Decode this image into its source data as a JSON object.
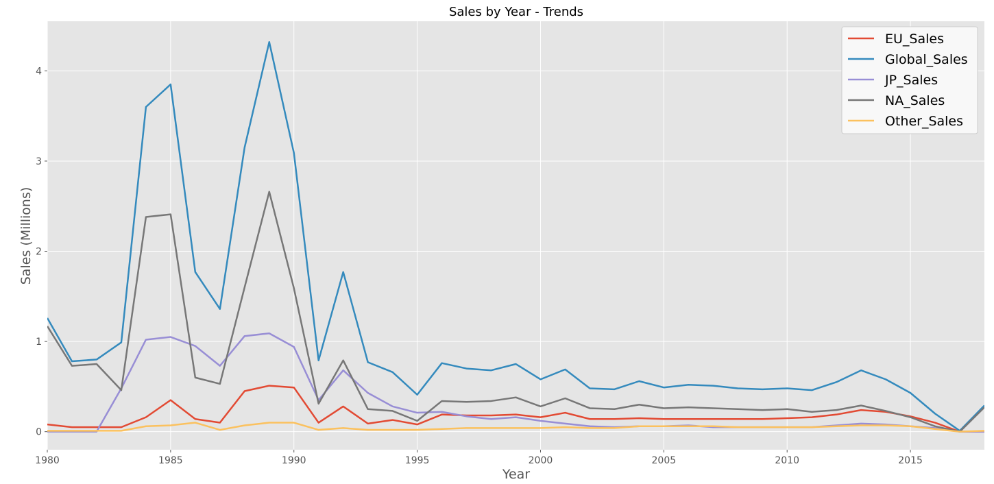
{
  "chart_data": {
    "type": "line",
    "title": "Sales by Year - Trends",
    "xlabel": "Year",
    "ylabel": "Sales (Millions)",
    "xlim": [
      1980,
      2018
    ],
    "ylim": [
      -0.2,
      4.55
    ],
    "xticks": [
      1980,
      1985,
      1990,
      1995,
      2000,
      2005,
      2010,
      2015
    ],
    "yticks": [
      0,
      1,
      2,
      3,
      4
    ],
    "grid": true,
    "legend_position": "top-right",
    "background": "#e5e5e5",
    "x": [
      1980,
      1981,
      1982,
      1983,
      1984,
      1985,
      1986,
      1987,
      1988,
      1989,
      1990,
      1991,
      1992,
      1993,
      1994,
      1995,
      1996,
      1997,
      1998,
      1999,
      2000,
      2001,
      2002,
      2003,
      2004,
      2005,
      2006,
      2007,
      2008,
      2009,
      2010,
      2011,
      2012,
      2013,
      2014,
      2015,
      2016,
      2017,
      2018
    ],
    "series": [
      {
        "name": "EU_Sales",
        "color": "#e24a33",
        "values": [
          0.08,
          0.05,
          0.05,
          0.05,
          0.16,
          0.35,
          0.14,
          0.1,
          0.45,
          0.51,
          0.49,
          0.1,
          0.28,
          0.09,
          0.13,
          0.08,
          0.19,
          0.18,
          0.18,
          0.19,
          0.16,
          0.21,
          0.14,
          0.14,
          0.15,
          0.14,
          0.14,
          0.14,
          0.14,
          0.14,
          0.15,
          0.16,
          0.19,
          0.24,
          0.22,
          0.17,
          0.1,
          0.0,
          0.0
        ]
      },
      {
        "name": "Global_Sales",
        "color": "#348abd",
        "values": [
          1.26,
          0.78,
          0.8,
          0.99,
          3.6,
          3.85,
          1.77,
          1.36,
          3.15,
          4.32,
          3.09,
          0.79,
          1.77,
          0.77,
          0.66,
          0.41,
          0.76,
          0.7,
          0.68,
          0.75,
          0.58,
          0.69,
          0.48,
          0.47,
          0.56,
          0.49,
          0.52,
          0.51,
          0.48,
          0.47,
          0.48,
          0.46,
          0.55,
          0.68,
          0.58,
          0.43,
          0.2,
          0.01,
          0.29
        ]
      },
      {
        "name": "JP_Sales",
        "color": "#988ed5",
        "values": [
          0.0,
          0.0,
          0.0,
          0.48,
          1.02,
          1.05,
          0.95,
          0.73,
          1.06,
          1.09,
          0.94,
          0.35,
          0.68,
          0.43,
          0.28,
          0.21,
          0.22,
          0.17,
          0.14,
          0.16,
          0.12,
          0.09,
          0.06,
          0.05,
          0.06,
          0.06,
          0.07,
          0.05,
          0.05,
          0.05,
          0.05,
          0.05,
          0.07,
          0.09,
          0.08,
          0.06,
          0.04,
          0.0,
          0.0
        ]
      },
      {
        "name": "NA_Sales",
        "color": "#777777",
        "values": [
          1.17,
          0.73,
          0.75,
          0.46,
          2.38,
          2.41,
          0.6,
          0.53,
          1.6,
          2.66,
          1.59,
          0.31,
          0.79,
          0.25,
          0.23,
          0.12,
          0.34,
          0.33,
          0.34,
          0.38,
          0.28,
          0.37,
          0.26,
          0.25,
          0.3,
          0.26,
          0.27,
          0.26,
          0.25,
          0.24,
          0.25,
          0.22,
          0.24,
          0.29,
          0.23,
          0.16,
          0.06,
          0.0,
          0.27
        ]
      },
      {
        "name": "Other_Sales",
        "color": "#fbc15e",
        "values": [
          0.01,
          0.01,
          0.01,
          0.01,
          0.06,
          0.07,
          0.1,
          0.02,
          0.07,
          0.1,
          0.1,
          0.02,
          0.04,
          0.02,
          0.02,
          0.02,
          0.03,
          0.04,
          0.04,
          0.04,
          0.04,
          0.05,
          0.04,
          0.04,
          0.06,
          0.06,
          0.06,
          0.06,
          0.05,
          0.05,
          0.05,
          0.05,
          0.06,
          0.07,
          0.07,
          0.06,
          0.03,
          0.0,
          0.01
        ]
      }
    ]
  }
}
